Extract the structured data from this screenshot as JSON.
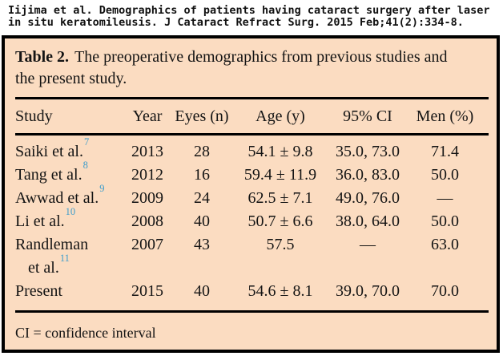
{
  "citation": {
    "line1": "Iijima et al. Demographics of patients having cataract surgery after laser",
    "line2": "in situ keratomileusis. J Cataract Refract Surg. 2015 Feb;41(2):334-8."
  },
  "table": {
    "label": "Table 2.",
    "caption": "The preoperative demographics from previous studies and the present study.",
    "columns": {
      "study": "Study",
      "year": "Year",
      "eyes": "Eyes (n)",
      "age": "Age (y)",
      "ci": "95% CI",
      "men": "Men (%)"
    },
    "rows": [
      {
        "study": "Saiki et al.",
        "ref": "7",
        "year": "2013",
        "eyes": "28",
        "age": "54.1 ± 9.8",
        "ci": "35.0, 73.0",
        "men": "71.4"
      },
      {
        "study": "Tang et al.",
        "ref": "8",
        "year": "2012",
        "eyes": "16",
        "age": "59.4 ± 11.9",
        "ci": "36.0, 83.0",
        "men": "50.0"
      },
      {
        "study": "Awwad et al.",
        "ref": "9",
        "year": "2009",
        "eyes": "24",
        "age": "62.5 ± 7.1",
        "ci": "49.0, 76.0",
        "men": "—"
      },
      {
        "study": "Li et al.",
        "ref": "10",
        "year": "2008",
        "eyes": "40",
        "age": "50.7 ± 6.6",
        "ci": "38.0, 64.0",
        "men": "50.0"
      },
      {
        "study": "Randleman",
        "study_line2": "et al.",
        "ref": "11",
        "year": "2007",
        "eyes": "43",
        "age": "57.5",
        "ci": "—",
        "men": "63.0"
      },
      {
        "study": "Present",
        "year": "2015",
        "eyes": "40",
        "age": "54.6 ± 8.1",
        "ci": "39.0, 70.0",
        "men": "70.0"
      }
    ],
    "footnote": "CI = confidence interval"
  },
  "colors": {
    "table_background": "#fbdcc1",
    "border": "#000000",
    "text": "#141414",
    "reference_superscript": "#3e9dcb",
    "page_background": "#ffffff"
  }
}
